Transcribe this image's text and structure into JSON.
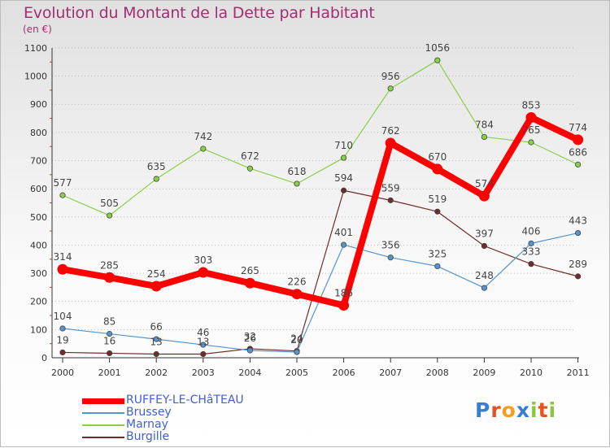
{
  "title": "Evolution du Montant de la Dette par Habitant",
  "subtitle": "(en €)",
  "logo": {
    "text": "Proxiti",
    "colors": [
      "#3a7fcf",
      "#e8501e",
      "#f0a020",
      "#3a7fcf",
      "#8cc63f",
      "#e8501e",
      "#8cc63f"
    ]
  },
  "chart_data": {
    "type": "line",
    "x": [
      "2000",
      "2001",
      "2002",
      "2003",
      "2004",
      "2005",
      "2006",
      "2007",
      "2008",
      "2009",
      "2010",
      "2011"
    ],
    "ylim": [
      0,
      1100
    ],
    "yticks": [
      0,
      100,
      200,
      300,
      400,
      500,
      600,
      700,
      800,
      900,
      1000,
      1100
    ],
    "grid": "horizontal-dotted",
    "legend_position": "bottom-left",
    "series": [
      {
        "name": "RUFFEY-LE-CHâTEAU",
        "color": "#ff0000",
        "emphasis": true,
        "values": [
          314,
          285,
          254,
          303,
          265,
          226,
          186,
          762,
          670,
          574,
          853,
          774
        ],
        "labels": [
          "314",
          "285",
          "254",
          "303",
          "265",
          "226",
          "186",
          "762",
          "670",
          "574",
          "853",
          "774"
        ]
      },
      {
        "name": "Brussey",
        "color": "#5595cc",
        "values": [
          104,
          85,
          66,
          46,
          26,
          20,
          401,
          356,
          325,
          248,
          406,
          443
        ],
        "labels": [
          "104",
          "85",
          "66",
          "46",
          "26",
          "20",
          "401",
          "356",
          "325",
          "248",
          "406",
          "443"
        ]
      },
      {
        "name": "Marnay",
        "color": "#88d048",
        "values": [
          577,
          505,
          635,
          742,
          672,
          618,
          710,
          956,
          1056,
          784,
          765,
          686
        ],
        "labels": [
          "577",
          "505",
          "635",
          "742",
          "672",
          "618",
          "710",
          "956",
          "1056",
          "784",
          "765",
          "686"
        ]
      },
      {
        "name": "Burgille",
        "color": "#722a2a",
        "values": [
          19,
          16,
          13,
          13,
          32,
          24,
          594,
          559,
          519,
          397,
          333,
          289
        ],
        "labels": [
          "19",
          "16",
          "13",
          "13",
          "32",
          "24",
          "594",
          "559",
          "519",
          "397",
          "333",
          "289"
        ]
      }
    ]
  }
}
